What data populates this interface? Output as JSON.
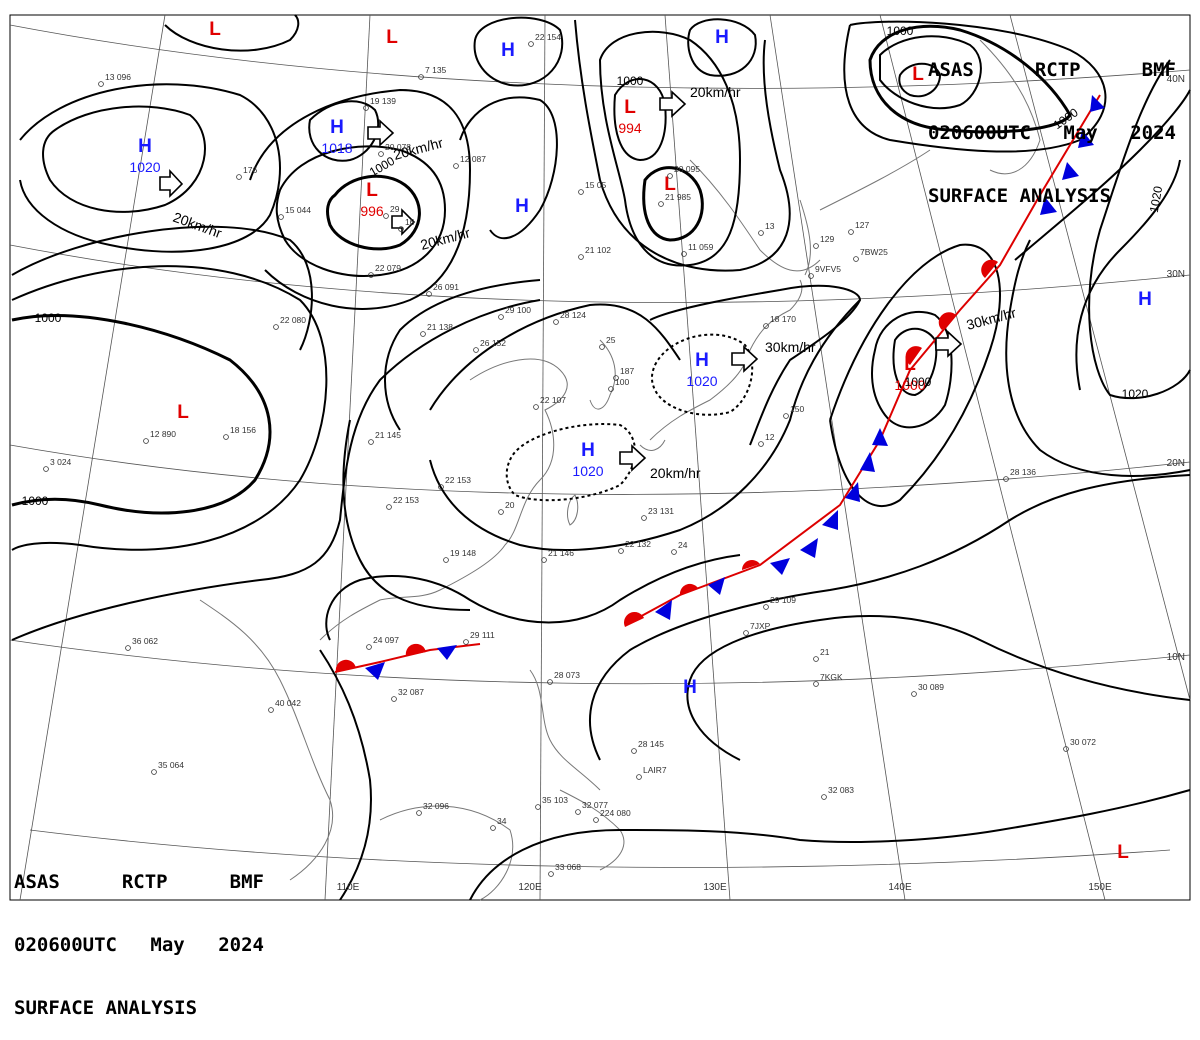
{
  "header": {
    "line1": [
      "ASAS",
      "RCTP",
      "BMF"
    ],
    "time": "020600UTC",
    "month": "May",
    "year": "2024",
    "title": "SURFACE ANALYSIS"
  },
  "longitudes": [
    "110E",
    "120E",
    "130E",
    "140E",
    "150E"
  ],
  "latitudes": [
    "40N",
    "30N",
    "20N",
    "10N"
  ],
  "colors": {
    "high": "#1a1aff",
    "low": "#e00000",
    "line": "#000000",
    "warm": "#ee0000",
    "cold": "#0000dd"
  },
  "pressure_centers": [
    {
      "type": "H",
      "value": "1020"
    },
    {
      "type": "H",
      "value": "1018"
    },
    {
      "type": "H",
      "value": ""
    },
    {
      "type": "H",
      "value": ""
    },
    {
      "type": "H",
      "value": ""
    },
    {
      "type": "H",
      "value": "1020"
    },
    {
      "type": "H",
      "value": "1020"
    },
    {
      "type": "H",
      "value": ""
    },
    {
      "type": "H",
      "value": ""
    },
    {
      "type": "L",
      "value": ""
    },
    {
      "type": "L",
      "value": ""
    },
    {
      "type": "L",
      "value": "996"
    },
    {
      "type": "L",
      "value": "994"
    },
    {
      "type": "L",
      "value": ""
    },
    {
      "type": "L",
      "value": ""
    },
    {
      "type": "L",
      "value": ""
    },
    {
      "type": "L",
      "value": "1000"
    },
    {
      "type": "L",
      "value": ""
    }
  ],
  "isobar_labels": [
    "1000",
    "1000",
    "1000",
    "1000",
    "1000",
    "1020",
    "1020",
    "1000",
    "1000"
  ],
  "motion_labels": [
    "20km/hr",
    "20km/hr",
    "20km/hr",
    "20km/hr",
    "30km/hr",
    "20km/hr",
    "30km/hr"
  ],
  "station_labels": [
    "13 096",
    "12 890",
    "18 156",
    "3 024",
    "176",
    "22 080",
    "26 091",
    "21 138",
    "29 100",
    "28 124",
    "26 152",
    "25",
    "22 107",
    "22 153",
    "20",
    "19 148",
    "21 145",
    "22 153",
    "36 062",
    "24 097",
    "32 087",
    "40 042",
    "35 064",
    "32 096",
    "34",
    "35 103",
    "32 077",
    "224 080",
    "28 145",
    "29 111",
    "21 146",
    "29 109",
    "21",
    "30 089",
    "32 083",
    "30 072",
    "28 136",
    "23 131",
    "22 132",
    "24",
    "21 102",
    "11 059",
    "13",
    "129",
    "127",
    "18 170",
    "150",
    "12",
    "20 095",
    "21 985",
    "15 05",
    "22 154",
    "7 135",
    "19 139",
    "12 087",
    "20 078",
    "15 044",
    "22 079",
    "29",
    "16",
    "187",
    "100",
    "33 068",
    "28 073",
    "9VFV5",
    "7BW25",
    "7JXP",
    "7KGK",
    "LAIR7"
  ]
}
